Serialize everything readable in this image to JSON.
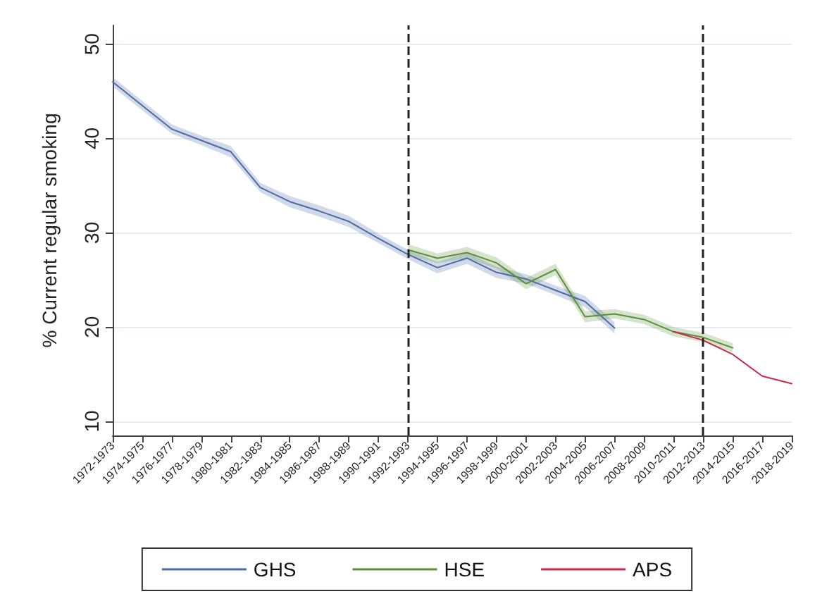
{
  "chart_data": {
    "type": "line",
    "ylabel": "% Current regular smoking",
    "categories": [
      "1972-1973",
      "1974-1975",
      "1976-1977",
      "1978-1979",
      "1980-1981",
      "1982-1983",
      "1984-1985",
      "1986-1987",
      "1988-1989",
      "1990-1991",
      "1992-1993",
      "1994-1995",
      "1996-1997",
      "1998-1999",
      "2000-2001",
      "2002-2003",
      "2004-2005",
      "2006-2007",
      "2008-2009",
      "2010-2011",
      "2012-2013",
      "2014-2015",
      "2016-2017",
      "2018-2019"
    ],
    "series": [
      {
        "name": "GHS",
        "color": "#4d6ba6",
        "values": [
          46.0,
          43.5,
          41.0,
          39.8,
          38.6,
          34.8,
          33.3,
          32.3,
          31.2,
          29.4,
          27.7,
          26.3,
          27.3,
          25.8,
          25.1,
          23.9,
          22.7,
          19.9,
          null,
          null,
          null,
          null,
          null,
          null
        ],
        "lower": [
          45.5,
          43.0,
          40.5,
          39.3,
          38.0,
          34.3,
          32.7,
          31.7,
          30.6,
          28.9,
          27.2,
          25.7,
          26.7,
          25.2,
          24.6,
          23.4,
          22.1,
          19.3,
          null,
          null,
          null,
          null,
          null,
          null
        ],
        "upper": [
          46.5,
          44.0,
          41.5,
          40.3,
          39.2,
          35.3,
          33.9,
          32.9,
          31.8,
          29.9,
          28.2,
          26.9,
          27.9,
          26.4,
          25.6,
          24.4,
          23.3,
          20.5,
          null,
          null,
          null,
          null,
          null,
          null
        ]
      },
      {
        "name": "HSE",
        "color": "#5b8f3c",
        "values": [
          null,
          null,
          null,
          null,
          null,
          null,
          null,
          null,
          null,
          null,
          28.2,
          27.3,
          27.9,
          26.8,
          24.6,
          26.1,
          21.1,
          21.4,
          20.8,
          19.5,
          18.9,
          17.8,
          null,
          null
        ],
        "lower": [
          null,
          null,
          null,
          null,
          null,
          null,
          null,
          null,
          null,
          null,
          27.6,
          26.8,
          27.3,
          26.2,
          24.0,
          25.5,
          20.5,
          20.9,
          20.3,
          19.0,
          18.4,
          17.3,
          null,
          null
        ],
        "upper": [
          null,
          null,
          null,
          null,
          null,
          null,
          null,
          null,
          null,
          null,
          28.8,
          27.8,
          28.5,
          27.4,
          25.2,
          26.7,
          21.7,
          21.9,
          21.3,
          20.0,
          19.4,
          18.3,
          null,
          null
        ]
      },
      {
        "name": "APS",
        "color": "#c8284a",
        "values": [
          null,
          null,
          null,
          null,
          null,
          null,
          null,
          null,
          null,
          null,
          null,
          null,
          null,
          null,
          null,
          null,
          null,
          null,
          null,
          19.5,
          18.6,
          17.1,
          14.8,
          14.0
        ]
      }
    ],
    "ylim": [
      8.5,
      52
    ],
    "yticks": [
      10,
      20,
      30,
      40,
      50
    ],
    "grid": "y",
    "legend": "bottom",
    "marker": "none",
    "line_style": "solid",
    "ref_lines": [
      {
        "axis": "x",
        "value": "1992-1993",
        "line_style": "dashed",
        "color": "#222222"
      },
      {
        "axis": "x",
        "value": "2012-2013",
        "line_style": "dashed",
        "color": "#222222"
      }
    ]
  }
}
